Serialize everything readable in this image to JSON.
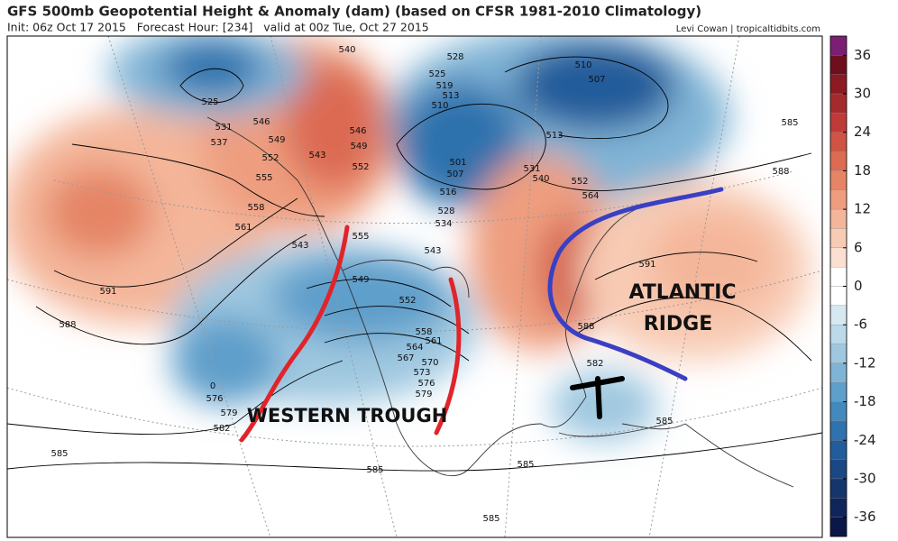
{
  "header": {
    "title": "GFS 500mb Geopotential Height & Anomaly (dam) (based on CFSR 1981-2010 Climatology)",
    "init": "Init: 06z Oct 17 2015   Forecast Hour: [234]   valid at 00z Tue, Oct 27 2015",
    "credit": "Levi Cowan | tropicaltidbits.com"
  },
  "colorbar": {
    "lim": [
      -39,
      39
    ],
    "step": 3,
    "ticks": [
      36,
      30,
      24,
      18,
      12,
      6,
      0,
      -6,
      -12,
      -18,
      -24,
      -30,
      -36
    ],
    "band_colors": [
      "#7b1f73",
      "#6e0f1e",
      "#8b1a22",
      "#a52a2e",
      "#bf3b38",
      "#cf5443",
      "#dc6b52",
      "#e58566",
      "#ee9e7f",
      "#f4b69a",
      "#f8cbb4",
      "#fbdfd0",
      "#ffffff",
      "#ffffff",
      "#d6e8f2",
      "#bcd9ea",
      "#9fc8e0",
      "#80b4d6",
      "#5f9fcb",
      "#4389bd",
      "#2f72ad",
      "#225c9a",
      "#1b4785",
      "#15356d",
      "#102559",
      "#0b1747"
    ]
  },
  "contour_labels": [
    525,
    531,
    537,
    546,
    549,
    552,
    555,
    558,
    561,
    591,
    588,
    540,
    543,
    546,
    549,
    552,
    555,
    528,
    525,
    519,
    513,
    510,
    510,
    507,
    513,
    501,
    507,
    516,
    528,
    534,
    543,
    531,
    540,
    552,
    564,
    585,
    588,
    591,
    588,
    543,
    549,
    552,
    558,
    561,
    564,
    567,
    570,
    573,
    576,
    579,
    582,
    576,
    579,
    582,
    585,
    585,
    585,
    585,
    585,
    0
  ],
  "annotations": {
    "atlantic_ridge": [
      "ATLANTIC",
      "RIDGE"
    ],
    "western_trough": "WESTERN TROUGH"
  }
}
